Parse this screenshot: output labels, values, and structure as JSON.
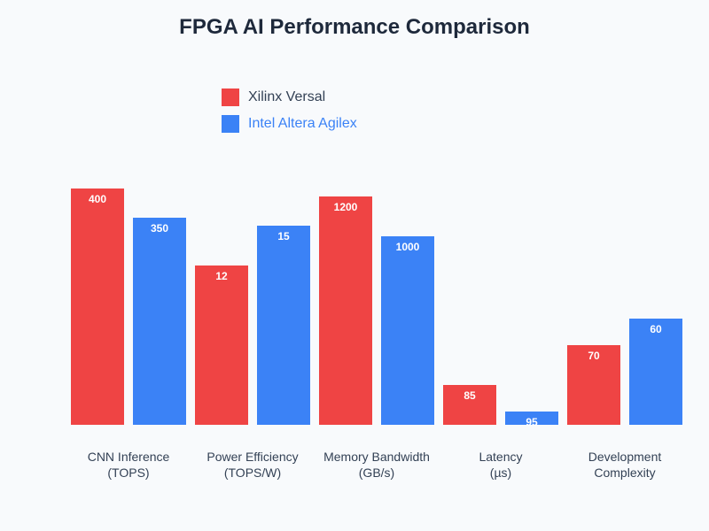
{
  "chart_data": {
    "type": "bar",
    "title": "FPGA AI Performance Comparison",
    "categories": [
      "CNN Inference\n(TOPS)",
      "Power Efficiency\n(TOPS/W)",
      "Memory Bandwidth\n(GB/s)",
      "Latency\n(µs)",
      "Development\nComplexity"
    ],
    "category_lines": [
      [
        "CNN Inference",
        "(TOPS)"
      ],
      [
        "Power Efficiency",
        "(TOPS/W)"
      ],
      [
        "Memory Bandwidth",
        "(GB/s)"
      ],
      [
        "Latency",
        "(µs)"
      ],
      [
        "Development",
        "Complexity"
      ]
    ],
    "series": [
      {
        "name": "Xilinx Versal",
        "color": "#ef4444",
        "values": [
          400,
          12,
          1200,
          85,
          70
        ],
        "relative_index": [
          89,
          60,
          86,
          15,
          30
        ]
      },
      {
        "name": "Intel Altera Agilex",
        "color": "#3b82f6",
        "values": [
          350,
          15,
          1000,
          95,
          60
        ],
        "relative_index": [
          78,
          75,
          71,
          5,
          40
        ]
      }
    ],
    "relative_index_max": 100,
    "legend": "top-left",
    "grid": false,
    "xlabel": "",
    "ylabel": ""
  }
}
